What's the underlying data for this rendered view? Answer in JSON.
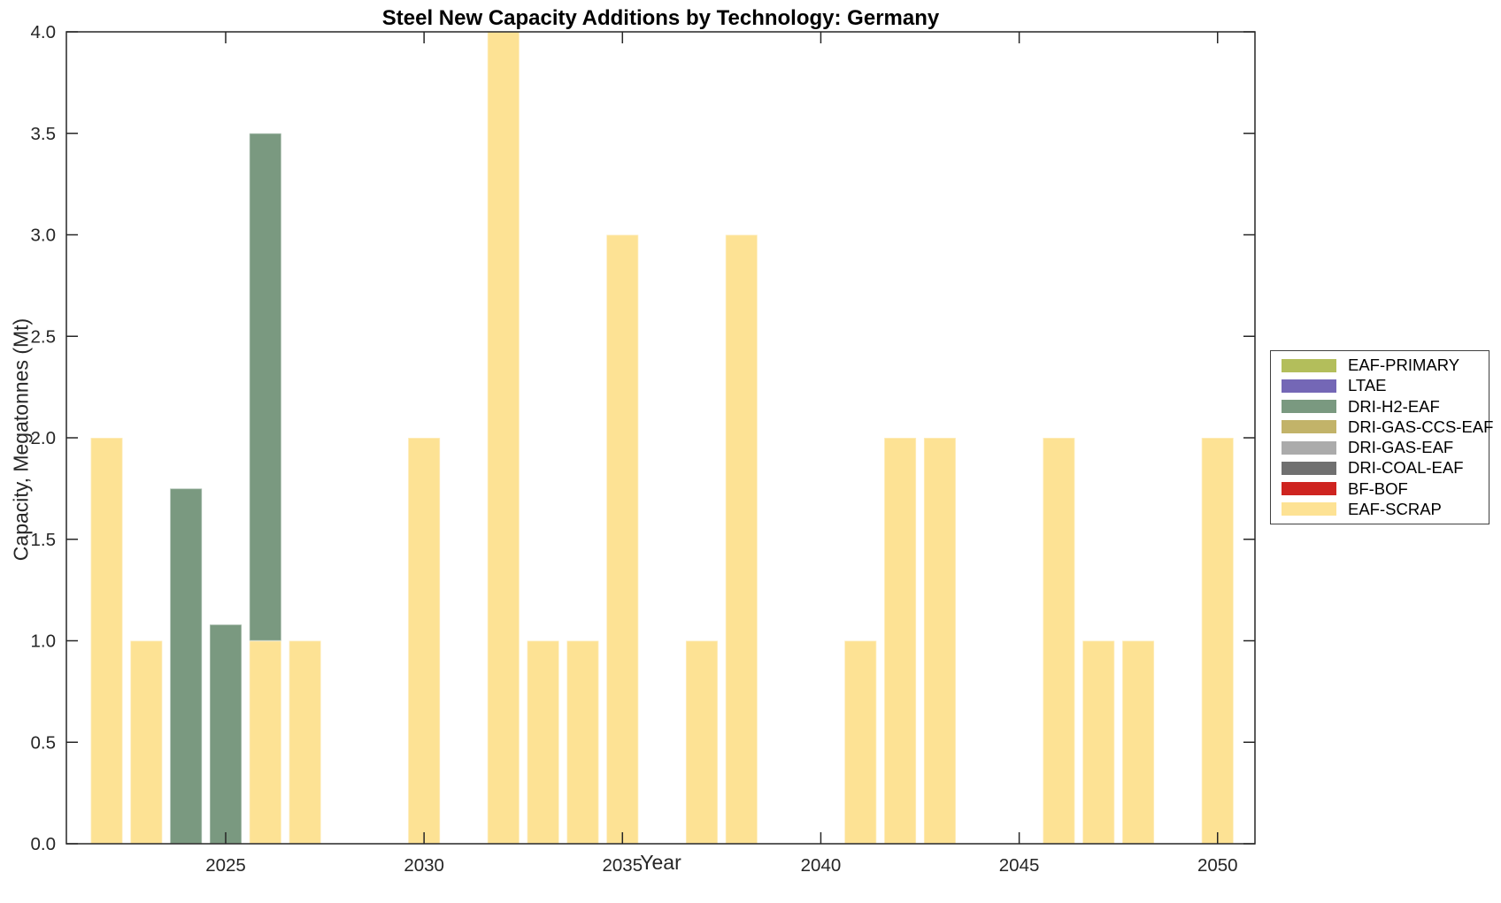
{
  "chart_data": {
    "type": "bar",
    "stacked": true,
    "title": "Steel New Capacity Additions by Technology: Germany",
    "xlabel": "Year",
    "ylabel": "Capacity, Megatonnes (Mt)",
    "xlim": [
      2021,
      2051
    ],
    "ylim": [
      0,
      4
    ],
    "grid": false,
    "xticks": [
      2025,
      2030,
      2035,
      2040,
      2045,
      2050
    ],
    "yticks": [
      0,
      0.5,
      1,
      1.5,
      2,
      2.5,
      3,
      3.5,
      4
    ],
    "ytick_labels": [
      "0.0",
      "0.5",
      "1.0",
      "1.5",
      "2.0",
      "2.5",
      "3.0",
      "3.5",
      "4.0"
    ],
    "legend": {
      "position": "right-outside",
      "entries": [
        {
          "label": "EAF-PRIMARY",
          "color": "#b3be5b"
        },
        {
          "label": "LTAE",
          "color": "#7467b6"
        },
        {
          "label": "DRI-H2-EAF",
          "color": "#7a9980"
        },
        {
          "label": "DRI-GAS-CCS-EAF",
          "color": "#c2b369"
        },
        {
          "label": "DRI-GAS-EAF",
          "color": "#ababab"
        },
        {
          "label": "DRI-COAL-EAF",
          "color": "#707070"
        },
        {
          "label": "BF-BOF",
          "color": "#ce2420"
        },
        {
          "label": "EAF-SCRAP",
          "color": "#fde294"
        }
      ]
    },
    "bars": [
      {
        "year": 2022,
        "segments": [
          {
            "tech": "EAF-SCRAP",
            "value": 2.0
          }
        ]
      },
      {
        "year": 2023,
        "segments": [
          {
            "tech": "EAF-SCRAP",
            "value": 1.0
          }
        ]
      },
      {
        "year": 2024,
        "segments": [
          {
            "tech": "DRI-H2-EAF",
            "value": 1.75
          }
        ]
      },
      {
        "year": 2025,
        "segments": [
          {
            "tech": "DRI-H2-EAF",
            "value": 1.08
          }
        ]
      },
      {
        "year": 2026,
        "segments": [
          {
            "tech": "EAF-SCRAP",
            "value": 1.0
          },
          {
            "tech": "DRI-H2-EAF",
            "value": 2.5
          }
        ]
      },
      {
        "year": 2027,
        "segments": [
          {
            "tech": "EAF-SCRAP",
            "value": 1.0
          }
        ]
      },
      {
        "year": 2030,
        "segments": [
          {
            "tech": "EAF-SCRAP",
            "value": 2.0
          }
        ]
      },
      {
        "year": 2032,
        "segments": [
          {
            "tech": "EAF-SCRAP",
            "value": 4.0
          }
        ]
      },
      {
        "year": 2033,
        "segments": [
          {
            "tech": "EAF-SCRAP",
            "value": 1.0
          }
        ]
      },
      {
        "year": 2034,
        "segments": [
          {
            "tech": "EAF-SCRAP",
            "value": 1.0
          }
        ]
      },
      {
        "year": 2035,
        "segments": [
          {
            "tech": "EAF-SCRAP",
            "value": 3.0
          }
        ]
      },
      {
        "year": 2037,
        "segments": [
          {
            "tech": "EAF-SCRAP",
            "value": 1.0
          }
        ]
      },
      {
        "year": 2038,
        "segments": [
          {
            "tech": "EAF-SCRAP",
            "value": 3.0
          }
        ]
      },
      {
        "year": 2041,
        "segments": [
          {
            "tech": "EAF-SCRAP",
            "value": 1.0
          }
        ]
      },
      {
        "year": 2042,
        "segments": [
          {
            "tech": "EAF-SCRAP",
            "value": 2.0
          }
        ]
      },
      {
        "year": 2043,
        "segments": [
          {
            "tech": "EAF-SCRAP",
            "value": 2.0
          }
        ]
      },
      {
        "year": 2046,
        "segments": [
          {
            "tech": "EAF-SCRAP",
            "value": 2.0
          }
        ]
      },
      {
        "year": 2047,
        "segments": [
          {
            "tech": "EAF-SCRAP",
            "value": 1.0
          }
        ]
      },
      {
        "year": 2048,
        "segments": [
          {
            "tech": "EAF-SCRAP",
            "value": 1.0
          }
        ]
      },
      {
        "year": 2050,
        "segments": [
          {
            "tech": "EAF-SCRAP",
            "value": 2.0
          }
        ]
      }
    ],
    "axis_color": "#262626",
    "text_color": "#262626"
  }
}
